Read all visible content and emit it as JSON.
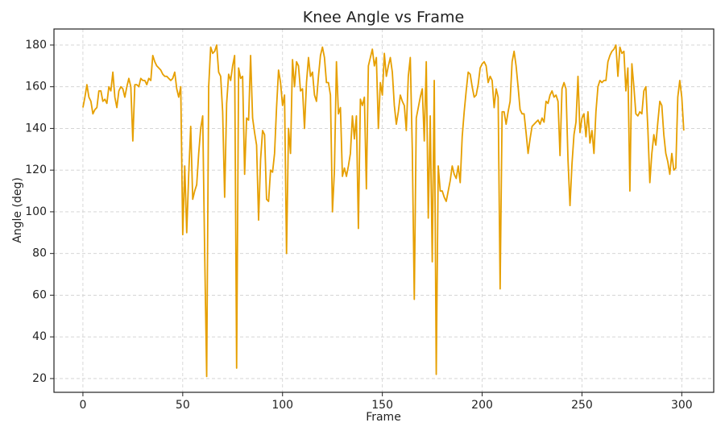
{
  "chart_data": {
    "type": "line",
    "title": "Knee Angle vs Frame",
    "x_label": "Frame",
    "y_label": "Angle (deg)",
    "x": [
      0,
      1,
      2,
      3,
      4,
      5,
      6,
      7,
      8,
      9,
      10,
      11,
      12,
      13,
      14,
      15,
      16,
      17,
      18,
      19,
      20,
      21,
      22,
      23,
      24,
      25,
      26,
      27,
      28,
      29,
      30,
      31,
      32,
      33,
      34,
      35,
      36,
      37,
      38,
      39,
      40,
      41,
      42,
      43,
      44,
      45,
      46,
      47,
      48,
      49,
      50,
      51,
      52,
      53,
      54,
      55,
      56,
      57,
      58,
      59,
      60,
      61,
      62,
      63,
      64,
      65,
      66,
      67,
      68,
      69,
      70,
      71,
      72,
      73,
      74,
      75,
      76,
      77,
      78,
      79,
      80,
      81,
      82,
      83,
      84,
      85,
      86,
      87,
      88,
      89,
      90,
      91,
      92,
      93,
      94,
      95,
      96,
      97,
      98,
      99,
      100,
      101,
      102,
      103,
      104,
      105,
      106,
      107,
      108,
      109,
      110,
      111,
      112,
      113,
      114,
      115,
      116,
      117,
      118,
      119,
      120,
      121,
      122,
      123,
      124,
      125,
      126,
      127,
      128,
      129,
      130,
      131,
      132,
      133,
      134,
      135,
      136,
      137,
      138,
      139,
      140,
      141,
      142,
      143,
      144,
      145,
      146,
      147,
      148,
      149,
      150,
      151,
      152,
      153,
      154,
      155,
      156,
      157,
      158,
      159,
      160,
      161,
      162,
      163,
      164,
      165,
      166,
      167,
      168,
      169,
      170,
      171,
      172,
      173,
      174,
      175,
      176,
      177,
      178,
      179,
      180,
      181,
      182,
      183,
      184,
      185,
      186,
      187,
      188,
      189,
      190,
      191,
      192,
      193,
      194,
      195,
      196,
      197,
      198,
      199,
      200,
      201,
      202,
      203,
      204,
      205,
      206,
      207,
      208,
      209,
      210,
      211,
      212,
      213,
      214,
      215,
      216,
      217,
      218,
      219,
      220,
      221,
      222,
      223,
      224,
      225,
      226,
      227,
      228,
      229,
      230,
      231,
      232,
      233,
      234,
      235,
      236,
      237,
      238,
      239,
      240,
      241,
      242,
      243,
      244,
      245,
      246,
      247,
      248,
      249,
      250,
      251,
      252,
      253,
      254,
      255,
      256,
      257,
      258,
      259,
      260,
      261,
      262,
      263,
      264,
      265,
      266,
      267,
      268,
      269,
      270,
      271,
      272,
      273,
      274,
      275,
      276,
      277,
      278,
      279,
      280,
      281,
      282,
      283,
      284,
      285,
      286,
      287,
      288,
      289,
      290,
      291,
      292,
      293,
      294,
      295,
      296,
      297,
      298,
      299,
      300,
      301
    ],
    "series": [
      {
        "color": "#e69f00",
        "values": [
          150,
          155,
          161,
          155,
          153,
          147,
          149,
          150,
          158,
          158,
          153,
          154,
          152,
          160,
          158,
          167,
          155,
          150,
          158,
          160,
          159,
          155,
          160,
          164,
          160,
          134,
          161,
          161,
          160,
          164,
          163,
          163,
          161,
          164,
          163,
          175,
          172,
          170,
          169,
          168,
          166,
          165,
          165,
          164,
          163,
          164,
          167,
          159,
          155,
          160,
          89,
          122,
          90,
          118,
          141,
          106,
          110,
          113,
          128,
          140,
          146,
          80,
          21,
          160,
          179,
          176,
          177,
          180,
          167,
          165,
          148,
          107,
          152,
          166,
          163,
          170,
          175,
          25,
          169,
          164,
          165,
          118,
          145,
          144,
          175,
          145,
          138,
          132,
          96,
          125,
          139,
          137,
          106,
          105,
          120,
          119,
          128,
          150,
          168,
          162,
          151,
          156,
          80,
          140,
          128,
          173,
          160,
          172,
          170,
          158,
          159,
          140,
          162,
          174,
          165,
          167,
          156,
          153,
          165,
          175,
          179,
          174,
          162,
          162,
          156,
          100,
          120,
          172,
          147,
          150,
          117,
          121,
          117,
          122,
          128,
          146,
          135,
          146,
          92,
          154,
          151,
          155,
          111,
          170,
          174,
          178,
          170,
          174,
          140,
          162,
          156,
          176,
          165,
          170,
          174,
          167,
          151,
          142,
          148,
          156,
          153,
          151,
          139,
          165,
          174,
          130,
          58,
          145,
          150,
          155,
          159,
          134,
          172,
          97,
          146,
          76,
          163,
          22,
          122,
          110,
          110,
          107,
          105,
          110,
          115,
          122,
          118,
          116,
          122,
          114,
          136,
          148,
          158,
          167,
          166,
          160,
          155,
          156,
          161,
          169,
          171,
          172,
          170,
          162,
          165,
          163,
          150,
          159,
          155,
          63,
          148,
          148,
          142,
          148,
          153,
          172,
          177,
          170,
          160,
          149,
          147,
          147,
          138,
          128,
          135,
          141,
          142,
          143,
          144,
          142,
          145,
          143,
          153,
          152,
          156,
          158,
          155,
          156,
          153,
          127,
          159,
          162,
          159,
          125,
          103,
          123,
          137,
          143,
          165,
          138,
          145,
          147,
          136,
          148,
          133,
          139,
          128,
          148,
          160,
          163,
          162,
          163,
          163,
          172,
          175,
          177,
          178,
          180,
          165,
          179,
          176,
          177,
          158,
          169,
          110,
          171,
          160,
          147,
          146,
          148,
          147,
          158,
          160,
          140,
          114,
          128,
          137,
          132,
          143,
          153,
          151,
          137,
          128,
          124,
          118,
          128,
          120,
          121,
          155,
          163,
          155,
          139
        ]
      }
    ],
    "xlim": [
      -14.5,
      316
    ],
    "ylim": [
      13.4,
      187.7
    ],
    "xticks": [
      0,
      50,
      100,
      150,
      200,
      250,
      300
    ],
    "yticks": [
      20,
      40,
      60,
      80,
      100,
      120,
      140,
      160,
      180
    ],
    "grid": true
  }
}
